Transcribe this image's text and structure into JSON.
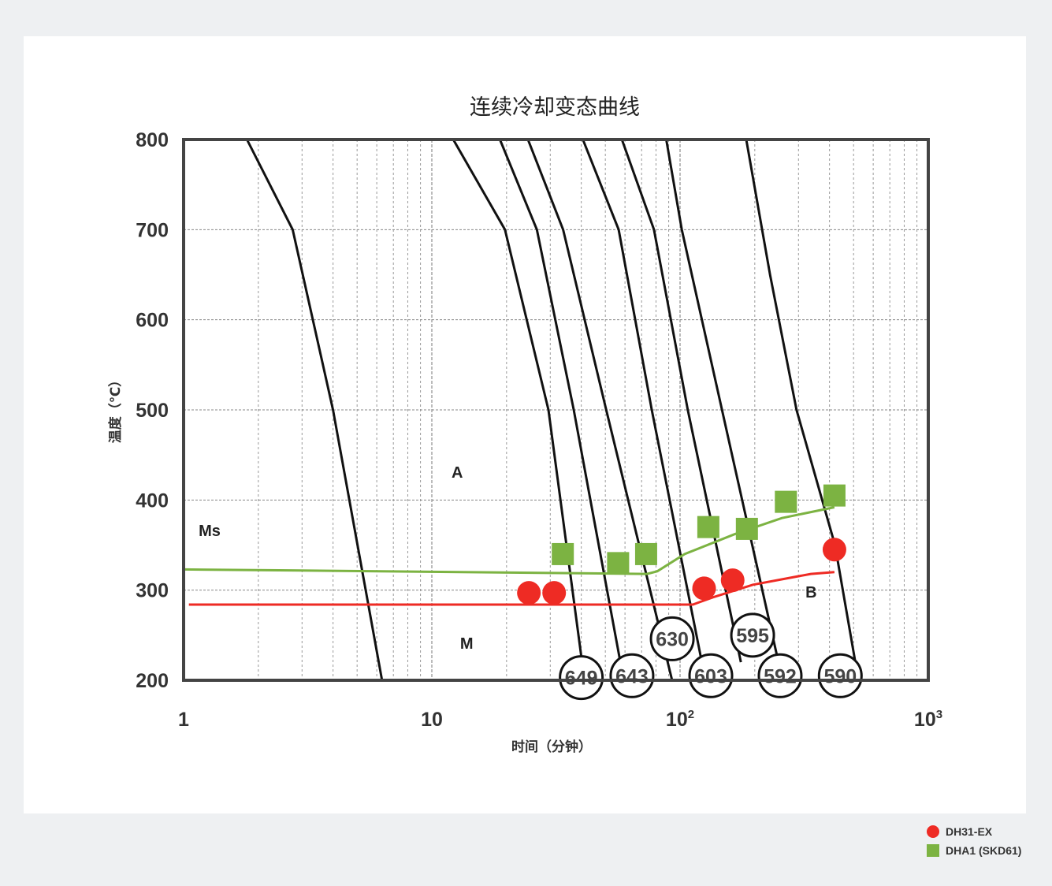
{
  "chart_data": {
    "type": "line",
    "title": "连续冷却变态曲线",
    "xlabel": "时间（分钟）",
    "ylabel": "温度（℃）",
    "x_scale": "log",
    "xlim": [
      1,
      1000
    ],
    "ylim": [
      200,
      800
    ],
    "grid": true,
    "y_ticks": [
      "800",
      "700",
      "600",
      "500",
      "400",
      "300",
      "200"
    ],
    "x_ticks": [
      {
        "value": 1,
        "base": "1",
        "exp": ""
      },
      {
        "value": 10,
        "base": "10",
        "exp": ""
      },
      {
        "value": 100,
        "base": "10",
        "exp": "2"
      },
      {
        "value": 1000,
        "base": "10",
        "exp": "3"
      }
    ],
    "regions": [
      {
        "label": "A",
        "x": 12,
        "y": 425
      },
      {
        "label": "Ms",
        "x": 1.15,
        "y": 360
      },
      {
        "label": "B",
        "x": 320,
        "y": 292
      },
      {
        "label": "M",
        "x": 13,
        "y": 235
      }
    ],
    "cooling_curves": [
      {
        "points": [
          [
            1.8,
            800
          ],
          [
            2.75,
            700
          ],
          [
            4.0,
            500
          ],
          [
            6.3,
            200
          ]
        ]
      },
      {
        "points": [
          [
            12.2,
            800
          ],
          [
            19.7,
            700
          ],
          [
            29.5,
            500
          ],
          [
            41.2,
            200
          ]
        ],
        "hardness": "649"
      },
      {
        "points": [
          [
            18.8,
            800
          ],
          [
            26.5,
            700
          ],
          [
            37.3,
            500
          ],
          [
            59.3,
            200
          ]
        ],
        "hardness": "643"
      },
      {
        "points": [
          [
            24.4,
            800
          ],
          [
            33.8,
            700
          ],
          [
            50.4,
            500
          ],
          [
            92.9,
            200
          ]
        ],
        "hardness": "630"
      },
      {
        "points": [
          [
            40.6,
            800
          ],
          [
            56.6,
            700
          ],
          [
            76.9,
            500
          ],
          [
            126.5,
            200
          ]
        ],
        "hardness": "603"
      },
      {
        "points": [
          [
            58.3,
            800
          ],
          [
            78.5,
            700
          ],
          [
            107.4,
            500
          ],
          [
            175.8,
            220
          ]
        ],
        "hardness": "595"
      },
      {
        "points": [
          [
            88.0,
            800
          ],
          [
            101.6,
            700
          ],
          [
            162.0,
            450
          ],
          [
            258.6,
            200
          ]
        ],
        "hardness": "592"
      },
      {
        "points": [
          [
            184.8,
            800
          ],
          [
            230.5,
            650
          ],
          [
            294.5,
            500
          ],
          [
            420.8,
            350
          ],
          [
            523.2,
            200
          ]
        ],
        "hardness": "590"
      }
    ],
    "series": [
      {
        "name": "DH31-EX",
        "color": "#ee2b24",
        "marker": "circle",
        "points": [
          [
            24.6,
            297
          ],
          [
            31.1,
            297
          ],
          [
            125.0,
            302
          ],
          [
            162.9,
            311
          ],
          [
            418.8,
            345
          ]
        ],
        "line": [
          [
            1.05,
            284
          ],
          [
            112.6,
            284
          ],
          [
            135.5,
            292
          ],
          [
            196.6,
            306
          ],
          [
            336.5,
            318
          ],
          [
            418.8,
            320
          ]
        ]
      },
      {
        "name": "DHA1 (SKD61)",
        "color": "#7cb342",
        "marker": "square",
        "points": [
          [
            33.7,
            340
          ],
          [
            56.3,
            330
          ],
          [
            73.0,
            340
          ],
          [
            130.0,
            370
          ],
          [
            185.9,
            368
          ],
          [
            266.9,
            398
          ],
          [
            418.8,
            405
          ]
        ],
        "line": [
          [
            1.0,
            323
          ],
          [
            6.2,
            321
          ],
          [
            73.6,
            318
          ],
          [
            81.0,
            321
          ],
          [
            104.4,
            340
          ],
          [
            165.5,
            362
          ],
          [
            257.4,
            380
          ],
          [
            418.8,
            392
          ]
        ]
      }
    ],
    "hardness_labels": [
      {
        "text": "649",
        "x": 40.0,
        "y": 203
      },
      {
        "text": "643",
        "x": 64.0,
        "y": 205
      },
      {
        "text": "630",
        "x": 93.0,
        "y": 246
      },
      {
        "text": "603",
        "x": 133.0,
        "y": 205
      },
      {
        "text": "595",
        "x": 196.0,
        "y": 250
      },
      {
        "text": "592",
        "x": 253.0,
        "y": 205
      },
      {
        "text": "590",
        "x": 442.0,
        "y": 205
      }
    ]
  },
  "legend": {
    "items": [
      {
        "label": "DH31-EX",
        "color": "#ee2b24",
        "shape": "circle"
      },
      {
        "label": "DHA1 (SKD61)",
        "color": "#7cb342",
        "shape": "square"
      }
    ]
  }
}
